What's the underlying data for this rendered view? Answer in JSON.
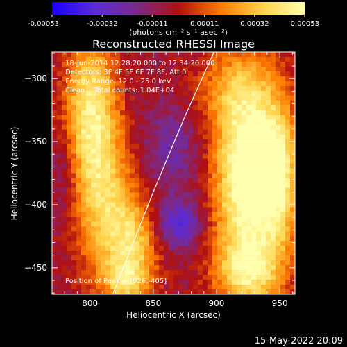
{
  "colorbar": {
    "tick_labels": [
      "-0.00053",
      "-0.00032",
      "-0.00011",
      "0.00011",
      "0.00032",
      "0.00053"
    ],
    "tick_values": [
      -0.00053,
      -0.00032,
      -0.00011,
      0.00011,
      0.00032,
      0.00053
    ],
    "range": [
      -0.00053,
      0.00053
    ],
    "units_label": "(photons cm⁻² s⁻¹ asec⁻²)",
    "colors": [
      "#1a00ff",
      "#5a2ad8",
      "#7a2a8a",
      "#b01010",
      "#ff7a00",
      "#ffd24a",
      "#ffffb0"
    ]
  },
  "title": "Reconstructed RHESSI Image",
  "annotations": {
    "line1": "18-Jun-2014 12:28:20.000 to 12:34:20.000",
    "line2": "Detectors: 3F 4F 5F 6F 7F 8F, Att 0",
    "line3": "Energy Range: 12.0 - 25.0 keV",
    "line4": "Clean    Total counts: 1.04E+04",
    "peak": "Position of Peak = [926,-405]"
  },
  "footer_date": "15-May-2022 20:09",
  "chart_data": {
    "type": "heatmap",
    "title": "Reconstructed RHESSI Image",
    "xlabel": "Heliocentric X (arcsec)",
    "ylabel": "Heliocentric Y (arcsec)",
    "xlim": [
      770,
      962
    ],
    "ylim": [
      -471,
      -279
    ],
    "xticks": [
      800,
      850,
      900,
      950
    ],
    "yticks": [
      -300,
      -350,
      -400,
      -450
    ],
    "xtick_labels": [
      "800",
      "850",
      "900",
      "950"
    ],
    "ytick_labels": [
      "−300",
      "−350",
      "−400",
      "−450"
    ],
    "limb_curve": [
      [
        818,
        -471
      ],
      [
        850,
        -390
      ],
      [
        875,
        -330
      ],
      [
        898,
        -279
      ]
    ],
    "peak_position": [
      926,
      -405
    ],
    "sources": [
      {
        "x": 800,
        "y": -320,
        "amp": 0.00045,
        "sx": 14,
        "sy": 40
      },
      {
        "x": 810,
        "y": -395,
        "amp": 0.0004,
        "sx": 16,
        "sy": 45
      },
      {
        "x": 835,
        "y": -430,
        "amp": 0.00038,
        "sx": 14,
        "sy": 26
      },
      {
        "x": 828,
        "y": -460,
        "amp": 0.0003,
        "sx": 12,
        "sy": 12
      },
      {
        "x": 920,
        "y": -310,
        "amp": 0.0004,
        "sx": 22,
        "sy": 25
      },
      {
        "x": 926,
        "y": -405,
        "amp": 0.00053,
        "sx": 20,
        "sy": 40
      },
      {
        "x": 930,
        "y": -360,
        "amp": 0.00045,
        "sx": 18,
        "sy": 25
      },
      {
        "x": 925,
        "y": -455,
        "amp": 0.00035,
        "sx": 18,
        "sy": 18
      },
      {
        "x": 950,
        "y": -380,
        "amp": 0.0003,
        "sx": 10,
        "sy": 40
      }
    ],
    "negative_sources": [
      {
        "x": 870,
        "y": -415,
        "amp": -0.0003,
        "sx": 14,
        "sy": 14
      },
      {
        "x": 865,
        "y": -355,
        "amp": -0.00018,
        "sx": 16,
        "sy": 22
      },
      {
        "x": 780,
        "y": -375,
        "amp": -0.00012,
        "sx": 8,
        "sy": 25
      }
    ]
  }
}
